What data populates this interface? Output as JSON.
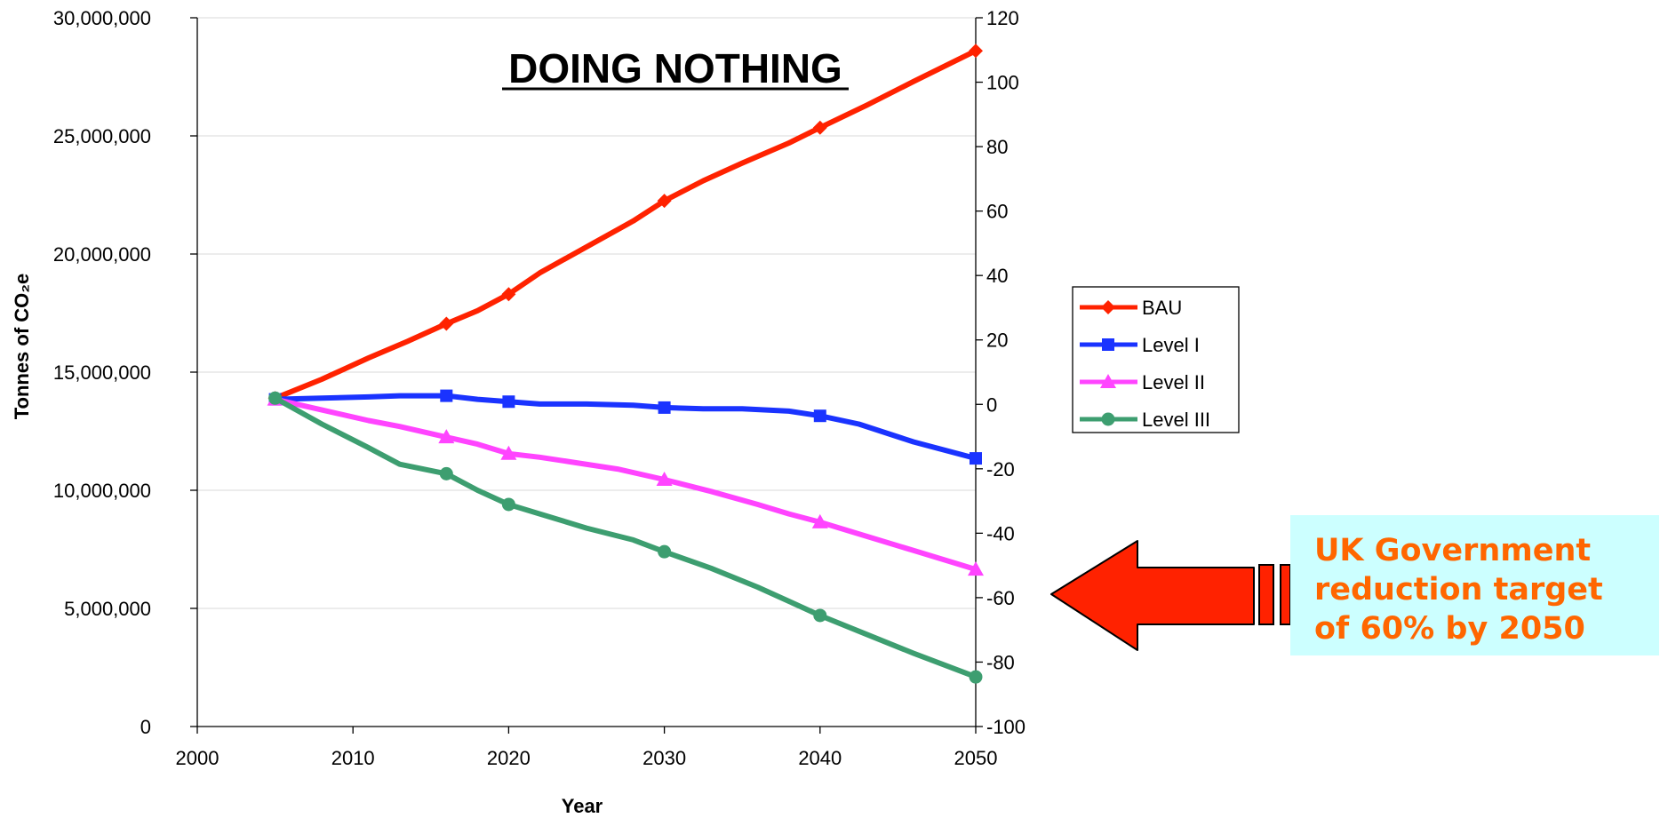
{
  "chart_data": {
    "type": "line",
    "title": "DOING NOTHING",
    "xlabel": "Year",
    "ylabel": "Tonnes of CO₂e",
    "xlim": [
      2000,
      2050
    ],
    "ylim": [
      0,
      30000000
    ],
    "y2lim": [
      -100,
      120
    ],
    "x_ticks": [
      2000,
      2010,
      2020,
      2030,
      2040,
      2050
    ],
    "y_ticks": [
      "0",
      "5,000,000",
      "10,000,000",
      "15,000,000",
      "20,000,000",
      "25,000,000",
      "30,000,000"
    ],
    "y2_ticks": [
      "-100",
      "-80",
      "-60",
      "-40",
      "-20",
      "0",
      "20",
      "40",
      "60",
      "80",
      "100",
      "120"
    ],
    "grid": "horizontal",
    "legend_position": "right",
    "series": [
      {
        "name": "BAU",
        "color": "#ff2200",
        "marker": "diamond",
        "points": [
          [
            2005,
            13900000
          ],
          [
            2008,
            14700000
          ],
          [
            2011,
            15600000
          ],
          [
            2013.5,
            16300000
          ],
          [
            2016,
            17050000
          ],
          [
            2018,
            17600000
          ],
          [
            2020,
            18300000
          ],
          [
            2022,
            19200000
          ],
          [
            2025,
            20300000
          ],
          [
            2028,
            21400000
          ],
          [
            2030,
            22250000
          ],
          [
            2032.5,
            23100000
          ],
          [
            2035,
            23850000
          ],
          [
            2038,
            24700000
          ],
          [
            2040,
            25350000
          ],
          [
            2043,
            26300000
          ],
          [
            2046,
            27300000
          ],
          [
            2050,
            28600000
          ]
        ]
      },
      {
        "name": "Level I",
        "color": "#1a33ff",
        "marker": "square",
        "points": [
          [
            2005,
            13850000
          ],
          [
            2008,
            13900000
          ],
          [
            2011,
            13950000
          ],
          [
            2013,
            14000000
          ],
          [
            2016,
            14000000
          ],
          [
            2018,
            13850000
          ],
          [
            2020,
            13750000
          ],
          [
            2022,
            13650000
          ],
          [
            2025,
            13650000
          ],
          [
            2028,
            13600000
          ],
          [
            2030,
            13500000
          ],
          [
            2032.5,
            13450000
          ],
          [
            2035,
            13450000
          ],
          [
            2038,
            13350000
          ],
          [
            2040,
            13150000
          ],
          [
            2042.5,
            12800000
          ],
          [
            2046,
            12050000
          ],
          [
            2050,
            11350000
          ]
        ]
      },
      {
        "name": "Level II",
        "color": "#ff44ff",
        "marker": "triangle",
        "points": [
          [
            2005,
            13850000
          ],
          [
            2008,
            13400000
          ],
          [
            2011,
            12950000
          ],
          [
            2013,
            12700000
          ],
          [
            2016,
            12250000
          ],
          [
            2018,
            11950000
          ],
          [
            2020,
            11550000
          ],
          [
            2022,
            11400000
          ],
          [
            2024,
            11200000
          ],
          [
            2027,
            10900000
          ],
          [
            2030,
            10450000
          ],
          [
            2033,
            9950000
          ],
          [
            2036,
            9400000
          ],
          [
            2038,
            9000000
          ],
          [
            2040,
            8650000
          ],
          [
            2043,
            8050000
          ],
          [
            2046,
            7450000
          ],
          [
            2050,
            6650000
          ]
        ]
      },
      {
        "name": "Level III",
        "color": "#3d9e70",
        "marker": "circle",
        "points": [
          [
            2005,
            13900000
          ],
          [
            2008,
            12800000
          ],
          [
            2011,
            11800000
          ],
          [
            2013,
            11100000
          ],
          [
            2016,
            10700000
          ],
          [
            2018,
            10000000
          ],
          [
            2020,
            9400000
          ],
          [
            2022,
            9000000
          ],
          [
            2025,
            8400000
          ],
          [
            2028,
            7900000
          ],
          [
            2030,
            7400000
          ],
          [
            2033,
            6700000
          ],
          [
            2036,
            5900000
          ],
          [
            2038,
            5300000
          ],
          [
            2040,
            4700000
          ],
          [
            2043,
            3900000
          ],
          [
            2046,
            3100000
          ],
          [
            2050,
            2100000
          ]
        ]
      }
    ]
  },
  "callout": {
    "text": "UK Government\nreduction target\nof 60% by 2050",
    "background": "#ccffff",
    "text_color": "#ff6600",
    "arrow_color": "#ff2200",
    "arrow_direction": "left"
  }
}
